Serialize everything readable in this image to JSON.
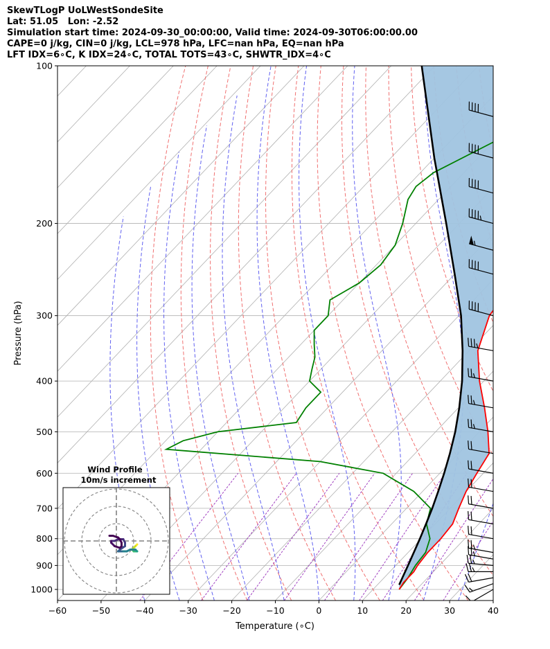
{
  "header": {
    "line1": "SkewTLogP UoLWestSondeSite",
    "line2": "Lat: 51.05   Lon: -2.52",
    "line3": "Simulation start time: 2024-09-30_00:00:00, Valid time: 2024-09-30T06:00:00.00",
    "line4": "CAPE=0 j/kg, CIN=0 j/kg, LCL=978 hPa, LFC=nan hPa, EQ=nan hPa",
    "line5": "LFT IDX=6∘C, K IDX=24∘C, TOTAL TOTS=43∘C, SHWTR_IDX=4∘C"
  },
  "chart_data": {
    "type": "line",
    "subtype": "skewt-logp",
    "xlabel": "Temperature (∘C)",
    "ylabel": "Pressure (hPa)",
    "xlim": [
      -60,
      40
    ],
    "ylim": [
      1050,
      100
    ],
    "yscale": "log",
    "x_ticks": [
      -60,
      -50,
      -40,
      -30,
      -20,
      -10,
      0,
      10,
      20,
      30,
      40
    ],
    "y_ticks": [
      1000,
      900,
      800,
      700,
      600,
      500,
      400,
      300,
      200,
      100
    ],
    "grid": true,
    "colors": {
      "temperature": "#ff0000",
      "dewpoint": "#008000",
      "parcel": "#000000",
      "shade": "#a0c4e0",
      "isotherm": "#b0b0b0",
      "dry_adiabat": "#f07070",
      "moist_adiabat": "#6060f0",
      "mixing_ratio": "#a040c0"
    },
    "temperature": {
      "p": [
        1000,
        970,
        925,
        900,
        850,
        800,
        750,
        700,
        650,
        600,
        550,
        500,
        450,
        400,
        350,
        300,
        250,
        230,
        210,
        200,
        190,
        175,
        160,
        150,
        140,
        130,
        120,
        110,
        100
      ],
      "t": [
        16,
        15.5,
        15.5,
        15,
        14.5,
        14.5,
        14,
        12,
        10,
        8.5,
        7,
        2,
        -4,
        -11,
        -18,
        -23,
        -25,
        -24,
        -19,
        -16,
        -14,
        -13,
        -13,
        -14,
        -15,
        -17,
        -21,
        -24,
        -28
      ]
    },
    "dewpoint": {
      "p": [
        1000,
        950,
        900,
        850,
        800,
        750,
        700,
        650,
        600,
        570,
        540,
        520,
        500,
        480,
        450,
        420,
        400,
        380,
        360,
        340,
        320,
        300,
        280,
        260,
        240,
        220,
        200,
        180,
        170,
        160,
        140,
        120,
        100
      ],
      "td": [
        16,
        15.5,
        14.5,
        14,
        12,
        8,
        5.5,
        -2,
        -13,
        -30,
        -68,
        -66,
        -60,
        -44,
        -45,
        -45,
        -50,
        -52,
        -54,
        -57,
        -60,
        -60,
        -63,
        -60,
        -59,
        -60,
        -63,
        -67,
        -68,
        -67,
        -60,
        -52,
        -43
      ]
    },
    "parcel": {
      "p": [
        980,
        950,
        900,
        850,
        800,
        750,
        700,
        650,
        600,
        550,
        500,
        450,
        400,
        350,
        300,
        250,
        200,
        150,
        100
      ],
      "t": [
        15,
        14.2,
        12.8,
        11.3,
        9.7,
        7.9,
        5.9,
        3.6,
        1.0,
        -2.0,
        -5.5,
        -9.8,
        -15.0,
        -21.5,
        -29.5,
        -40.0,
        -53.0,
        -70.0,
        -93.0
      ]
    },
    "wind_barbs": {
      "p": [
        1000,
        975,
        950,
        925,
        900,
        875,
        850,
        800,
        750,
        700,
        650,
        600,
        550,
        500,
        450,
        400,
        350,
        300,
        250,
        225,
        200,
        175,
        150,
        125,
        100
      ],
      "speed_kt": [
        10,
        15,
        20,
        25,
        25,
        25,
        25,
        20,
        20,
        20,
        20,
        20,
        20,
        25,
        25,
        25,
        35,
        40,
        40,
        55,
        45,
        40,
        40,
        40,
        35
      ],
      "direction_deg": [
        240,
        250,
        260,
        270,
        275,
        280,
        280,
        280,
        280,
        280,
        280,
        280,
        280,
        280,
        280,
        280,
        280,
        285,
        285,
        285,
        285,
        285,
        285,
        285,
        285
      ]
    },
    "inset": {
      "title_line1": "Wind Profile",
      "title_line2": "10m/s increment",
      "rings_ms": [
        10,
        20,
        30
      ],
      "hodograph": {
        "u": [
          12,
          11,
          10,
          9,
          10,
          12,
          11,
          8,
          6,
          3,
          1,
          2,
          5,
          5,
          4,
          1,
          -1,
          -3,
          -3,
          -1,
          2,
          3,
          3,
          2,
          1,
          -2,
          -4
        ],
        "v": [
          -2,
          -3,
          -4,
          -5,
          -6,
          -6,
          -5,
          -5,
          -6,
          -6,
          -6,
          -5,
          -3,
          -1,
          1,
          1,
          0,
          0,
          -1,
          -3,
          -4,
          -3,
          -1,
          1,
          2,
          3,
          3
        ],
        "colors": [
          "#fde725",
          "#cde11d",
          "#b5de2b",
          "#6ece58",
          "#35b779",
          "#1f9e89",
          "#26828e",
          "#26828e",
          "#26828e",
          "#31688e",
          "#31688e",
          "#3e4a89",
          "#3e4a89",
          "#443983",
          "#482878",
          "#482878",
          "#472d7b",
          "#471063",
          "#471063",
          "#440154",
          "#440154",
          "#440154",
          "#440154",
          "#440154",
          "#440154",
          "#440154",
          "#440154"
        ]
      }
    }
  }
}
